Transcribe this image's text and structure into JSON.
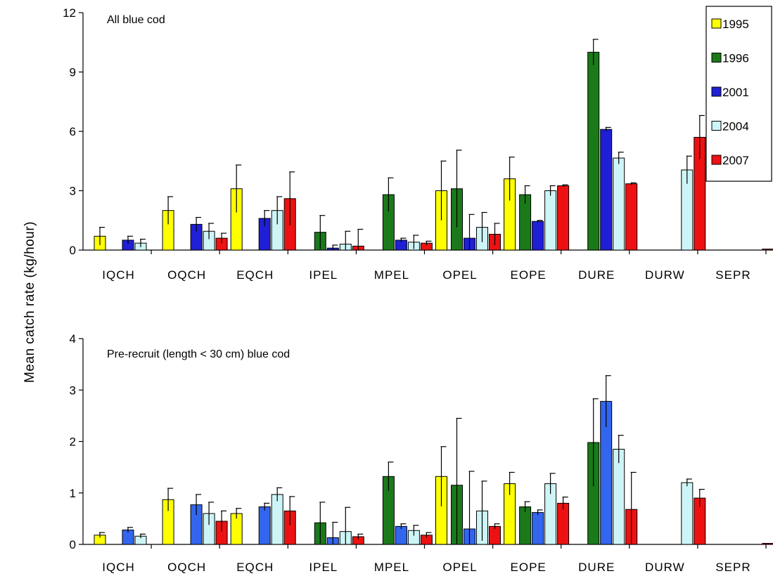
{
  "ylabel": "Mean catch rate (kg/hour)",
  "colors": {
    "1995": "#ffff00",
    "1996": "#1a7a1a",
    "2001": "#1f1fd6",
    "2001_pre": "#3366ee",
    "2004": "#cdf5f7",
    "2007": "#ee1111"
  },
  "chart_data": [
    {
      "type": "bar",
      "title": "All blue cod",
      "ylim": [
        0,
        12
      ],
      "yticks": [
        0,
        3,
        6,
        9,
        12
      ],
      "categories": [
        "IQCH",
        "OQCH",
        "EQCH",
        "IPEL",
        "MPEL",
        "OPEL",
        "EOPE",
        "DURE",
        "DURW",
        "SEPR"
      ],
      "legend": {
        "position": "top-right"
      },
      "series": [
        {
          "name": "1995",
          "values": [
            0.7,
            2.0,
            3.1,
            null,
            null,
            3.0,
            3.6,
            null,
            null,
            null
          ],
          "errors": [
            0.45,
            0.7,
            1.2,
            null,
            null,
            1.5,
            1.1,
            null,
            null,
            null
          ]
        },
        {
          "name": "1996",
          "values": [
            null,
            null,
            null,
            0.9,
            2.8,
            3.1,
            2.8,
            10.0,
            null,
            null
          ],
          "errors": [
            null,
            null,
            null,
            0.85,
            0.85,
            1.95,
            0.45,
            0.65,
            null,
            null
          ]
        },
        {
          "name": "2001",
          "values": [
            0.5,
            1.3,
            1.6,
            0.1,
            0.5,
            0.6,
            1.45,
            6.1,
            null,
            null
          ],
          "errors": [
            0.2,
            0.35,
            0.4,
            0.15,
            0.1,
            1.2,
            0.05,
            0.1,
            null,
            null
          ]
        },
        {
          "name": "2004",
          "values": [
            0.35,
            0.95,
            2.0,
            0.3,
            0.4,
            1.15,
            3.0,
            4.65,
            4.05,
            null
          ],
          "errors": [
            0.2,
            0.4,
            0.7,
            0.65,
            0.35,
            0.75,
            0.25,
            0.3,
            0.7,
            null
          ]
        },
        {
          "name": "2007",
          "values": [
            null,
            0.6,
            2.6,
            0.2,
            0.35,
            0.8,
            3.25,
            3.35,
            5.7,
            0.05
          ],
          "errors": [
            null,
            0.25,
            1.35,
            0.85,
            0.1,
            0.55,
            0.05,
            0.05,
            1.1,
            null
          ]
        }
      ]
    },
    {
      "type": "bar",
      "title": "Pre-recruit (length < 30 cm) blue cod",
      "ylim": [
        0,
        4
      ],
      "yticks": [
        0,
        1,
        2,
        3,
        4
      ],
      "categories": [
        "IQCH",
        "OQCH",
        "EQCH",
        "IPEL",
        "MPEL",
        "OPEL",
        "EOPE",
        "DURE",
        "DURW",
        "SEPR"
      ],
      "series": [
        {
          "name": "1995",
          "values": [
            0.18,
            0.87,
            0.6,
            null,
            null,
            1.32,
            1.18,
            null,
            null,
            null
          ],
          "errors": [
            0.05,
            0.22,
            0.1,
            null,
            null,
            0.58,
            0.22,
            null,
            null,
            null
          ]
        },
        {
          "name": "1996",
          "values": [
            null,
            null,
            null,
            0.42,
            1.32,
            1.15,
            0.73,
            1.98,
            null,
            null
          ],
          "errors": [
            null,
            null,
            null,
            0.4,
            0.28,
            1.3,
            0.1,
            0.85,
            null,
            null
          ]
        },
        {
          "name": "2001",
          "values": [
            0.28,
            0.77,
            0.73,
            0.13,
            0.35,
            0.3,
            0.62,
            2.78,
            null,
            null
          ],
          "errors": [
            0.05,
            0.2,
            0.07,
            0.3,
            0.05,
            1.12,
            0.05,
            0.5,
            null,
            null
          ]
        },
        {
          "name": "2004",
          "values": [
            0.16,
            0.6,
            0.97,
            0.25,
            0.27,
            0.65,
            1.18,
            1.85,
            1.2,
            null
          ],
          "errors": [
            0.04,
            0.22,
            0.13,
            0.47,
            0.1,
            0.58,
            0.2,
            0.27,
            0.07,
            null
          ]
        },
        {
          "name": "2007",
          "values": [
            null,
            0.45,
            0.65,
            0.15,
            0.18,
            0.35,
            0.8,
            0.68,
            0.9,
            0.02
          ],
          "errors": [
            null,
            0.2,
            0.28,
            0.05,
            0.05,
            0.05,
            0.12,
            0.72,
            0.17,
            null
          ]
        }
      ]
    }
  ]
}
